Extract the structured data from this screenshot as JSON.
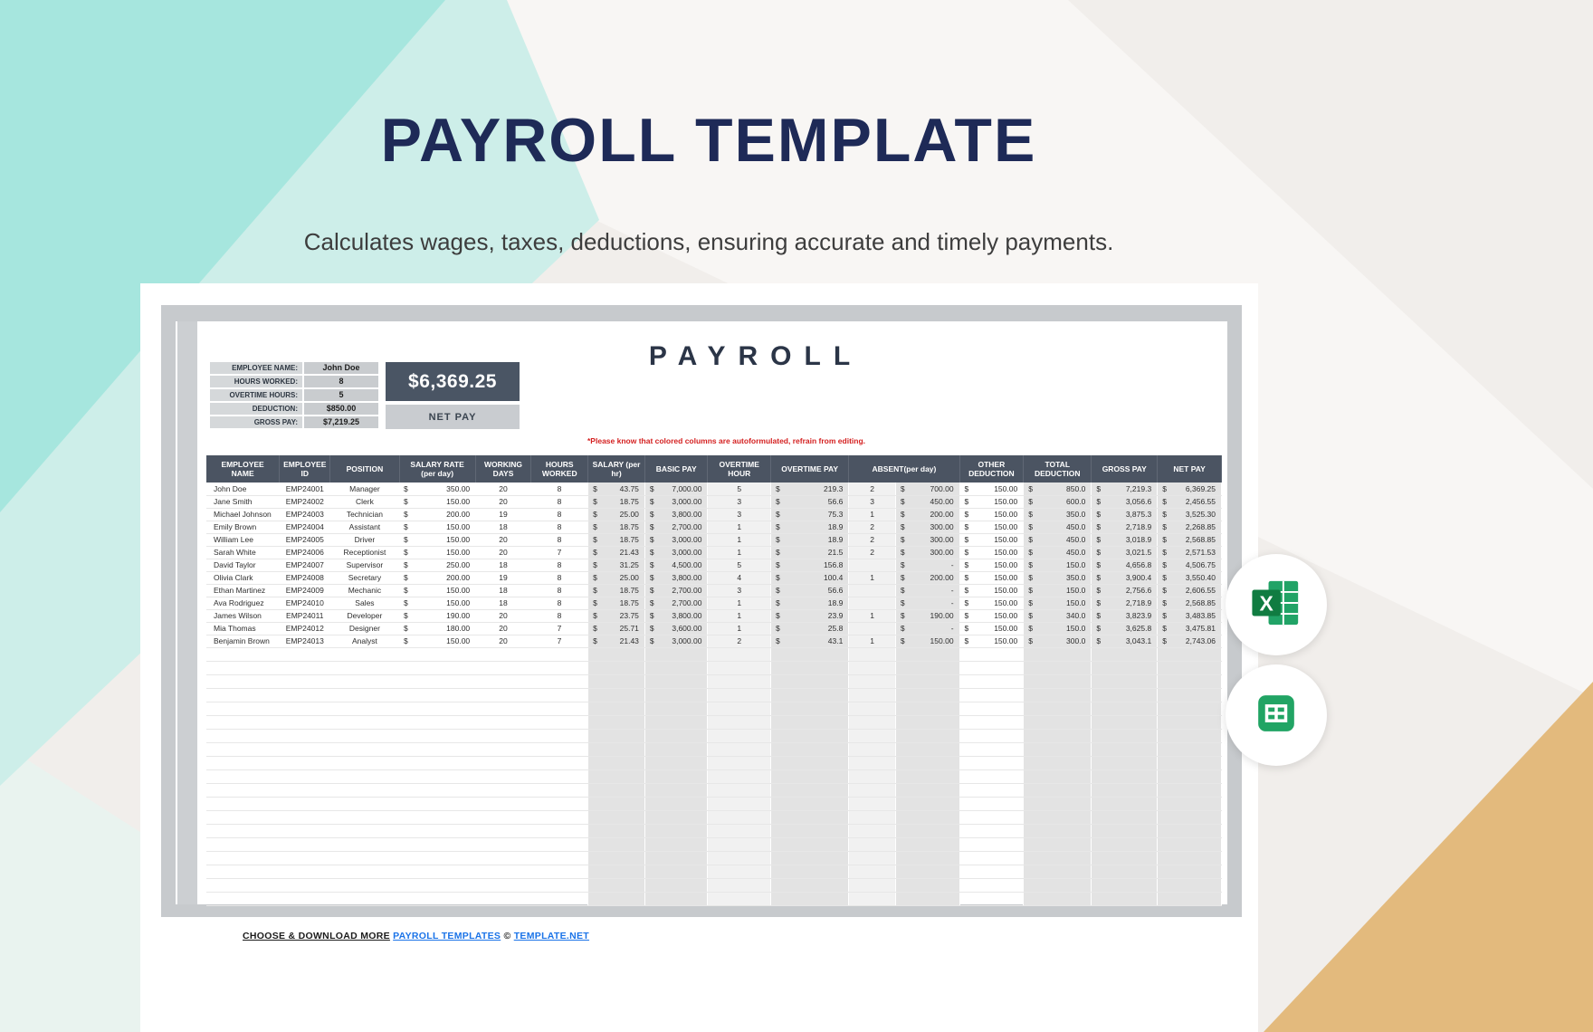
{
  "page": {
    "title": "PAYROLL TEMPLATE",
    "subtitle": "Calculates wages, taxes, deductions, ensuring accurate and timely payments.",
    "footer": {
      "prefix": "CHOOSE & DOWNLOAD MORE",
      "templates_link": "PAYROLL TEMPLATES",
      "copyright": "©",
      "site_link": "TEMPLATE.NET"
    },
    "icons": [
      "excel-icon",
      "google-sheets-icon"
    ]
  },
  "sheet": {
    "title": "PAYROLL",
    "note": "*Please know that colored columns are autoformulated, refrain from editing.",
    "summary": {
      "rows": [
        {
          "label": "EMPLOYEE NAME:",
          "value": "John Doe"
        },
        {
          "label": "HOURS WORKED:",
          "value": "8"
        },
        {
          "label": "OVERTIME HOURS:",
          "value": "5"
        },
        {
          "label": "DEDUCTION:",
          "value": "$850.00"
        },
        {
          "label": "GROSS PAY:",
          "value": "$7,219.25"
        }
      ],
      "net_pay_value": "$6,369.25",
      "net_pay_label": "NET PAY"
    },
    "table": {
      "headers": [
        "EMPLOYEE NAME",
        "EMPLOYEE ID",
        "POSITION",
        "SALARY RATE (per day)",
        "WORKING DAYS",
        "HOURS WORKED",
        "SALARY (per hr)",
        "BASIC PAY",
        "OVERTIME HOUR",
        "OVERTIME PAY",
        "ABSENT(per day)",
        "OTHER DEDUCTION",
        "TOTAL DEDUCTION",
        "GROSS PAY",
        "NET PAY"
      ],
      "rows": [
        {
          "name": "John Doe",
          "id": "EMP24001",
          "position": "Manager",
          "salary_rate": "350.00",
          "working_days": "20",
          "hours_worked": "8",
          "salary_per_hr": "43.75",
          "basic_pay": "7,000.00",
          "overtime_hour": "5",
          "overtime_pay": "219.3",
          "absent_days": "2",
          "absent_amount": "700.00",
          "other_deduction": "150.00",
          "total_deduction": "850.0",
          "gross_pay": "7,219.3",
          "net_pay": "6,369.25"
        },
        {
          "name": "Jane Smith",
          "id": "EMP24002",
          "position": "Clerk",
          "salary_rate": "150.00",
          "working_days": "20",
          "hours_worked": "8",
          "salary_per_hr": "18.75",
          "basic_pay": "3,000.00",
          "overtime_hour": "3",
          "overtime_pay": "56.6",
          "absent_days": "3",
          "absent_amount": "450.00",
          "other_deduction": "150.00",
          "total_deduction": "600.0",
          "gross_pay": "3,056.6",
          "net_pay": "2,456.55"
        },
        {
          "name": "Michael Johnson",
          "id": "EMP24003",
          "position": "Technician",
          "salary_rate": "200.00",
          "working_days": "19",
          "hours_worked": "8",
          "salary_per_hr": "25.00",
          "basic_pay": "3,800.00",
          "overtime_hour": "3",
          "overtime_pay": "75.3",
          "absent_days": "1",
          "absent_amount": "200.00",
          "other_deduction": "150.00",
          "total_deduction": "350.0",
          "gross_pay": "3,875.3",
          "net_pay": "3,525.30"
        },
        {
          "name": "Emily Brown",
          "id": "EMP24004",
          "position": "Assistant",
          "salary_rate": "150.00",
          "working_days": "18",
          "hours_worked": "8",
          "salary_per_hr": "18.75",
          "basic_pay": "2,700.00",
          "overtime_hour": "1",
          "overtime_pay": "18.9",
          "absent_days": "2",
          "absent_amount": "300.00",
          "other_deduction": "150.00",
          "total_deduction": "450.0",
          "gross_pay": "2,718.9",
          "net_pay": "2,268.85"
        },
        {
          "name": "William Lee",
          "id": "EMP24005",
          "position": "Driver",
          "salary_rate": "150.00",
          "working_days": "20",
          "hours_worked": "8",
          "salary_per_hr": "18.75",
          "basic_pay": "3,000.00",
          "overtime_hour": "1",
          "overtime_pay": "18.9",
          "absent_days": "2",
          "absent_amount": "300.00",
          "other_deduction": "150.00",
          "total_deduction": "450.0",
          "gross_pay": "3,018.9",
          "net_pay": "2,568.85"
        },
        {
          "name": "Sarah White",
          "id": "EMP24006",
          "position": "Receptionist",
          "salary_rate": "150.00",
          "working_days": "20",
          "hours_worked": "7",
          "salary_per_hr": "21.43",
          "basic_pay": "3,000.00",
          "overtime_hour": "1",
          "overtime_pay": "21.5",
          "absent_days": "2",
          "absent_amount": "300.00",
          "other_deduction": "150.00",
          "total_deduction": "450.0",
          "gross_pay": "3,021.5",
          "net_pay": "2,571.53"
        },
        {
          "name": "David Taylor",
          "id": "EMP24007",
          "position": "Supervisor",
          "salary_rate": "250.00",
          "working_days": "18",
          "hours_worked": "8",
          "salary_per_hr": "31.25",
          "basic_pay": "4,500.00",
          "overtime_hour": "5",
          "overtime_pay": "156.8",
          "absent_days": "",
          "absent_amount": "-",
          "other_deduction": "150.00",
          "total_deduction": "150.0",
          "gross_pay": "4,656.8",
          "net_pay": "4,506.75"
        },
        {
          "name": "Olivia Clark",
          "id": "EMP24008",
          "position": "Secretary",
          "salary_rate": "200.00",
          "working_days": "19",
          "hours_worked": "8",
          "salary_per_hr": "25.00",
          "basic_pay": "3,800.00",
          "overtime_hour": "4",
          "overtime_pay": "100.4",
          "absent_days": "1",
          "absent_amount": "200.00",
          "other_deduction": "150.00",
          "total_deduction": "350.0",
          "gross_pay": "3,900.4",
          "net_pay": "3,550.40"
        },
        {
          "name": "Ethan Martinez",
          "id": "EMP24009",
          "position": "Mechanic",
          "salary_rate": "150.00",
          "working_days": "18",
          "hours_worked": "8",
          "salary_per_hr": "18.75",
          "basic_pay": "2,700.00",
          "overtime_hour": "3",
          "overtime_pay": "56.6",
          "absent_days": "",
          "absent_amount": "-",
          "other_deduction": "150.00",
          "total_deduction": "150.0",
          "gross_pay": "2,756.6",
          "net_pay": "2,606.55"
        },
        {
          "name": "Ava Rodriguez",
          "id": "EMP24010",
          "position": "Sales",
          "salary_rate": "150.00",
          "working_days": "18",
          "hours_worked": "8",
          "salary_per_hr": "18.75",
          "basic_pay": "2,700.00",
          "overtime_hour": "1",
          "overtime_pay": "18.9",
          "absent_days": "",
          "absent_amount": "-",
          "other_deduction": "150.00",
          "total_deduction": "150.0",
          "gross_pay": "2,718.9",
          "net_pay": "2,568.85"
        },
        {
          "name": "James Wilson",
          "id": "EMP24011",
          "position": "Developer",
          "salary_rate": "190.00",
          "working_days": "20",
          "hours_worked": "8",
          "salary_per_hr": "23.75",
          "basic_pay": "3,800.00",
          "overtime_hour": "1",
          "overtime_pay": "23.9",
          "absent_days": "1",
          "absent_amount": "190.00",
          "other_deduction": "150.00",
          "total_deduction": "340.0",
          "gross_pay": "3,823.9",
          "net_pay": "3,483.85"
        },
        {
          "name": "Mia Thomas",
          "id": "EMP24012",
          "position": "Designer",
          "salary_rate": "180.00",
          "working_days": "20",
          "hours_worked": "7",
          "salary_per_hr": "25.71",
          "basic_pay": "3,600.00",
          "overtime_hour": "1",
          "overtime_pay": "25.8",
          "absent_days": "",
          "absent_amount": "-",
          "other_deduction": "150.00",
          "total_deduction": "150.0",
          "gross_pay": "3,625.8",
          "net_pay": "3,475.81"
        },
        {
          "name": "Benjamin Brown",
          "id": "EMP24013",
          "position": "Analyst",
          "salary_rate": "150.00",
          "working_days": "20",
          "hours_worked": "7",
          "salary_per_hr": "21.43",
          "basic_pay": "3,000.00",
          "overtime_hour": "2",
          "overtime_pay": "43.1",
          "absent_days": "1",
          "absent_amount": "150.00",
          "other_deduction": "150.00",
          "total_deduction": "300.0",
          "gross_pay": "3,043.1",
          "net_pay": "2,743.06"
        }
      ],
      "empty_row_count": 19
    }
  },
  "colors": {
    "title_navy": "#1e2a57",
    "teal_dark": "#a6e6de",
    "teal_light": "#cdeee9",
    "tan": "#e3ba7d",
    "header_slate": "#4b5462",
    "autoformula_gray": "#e3e3e3",
    "autoformula_light": "#f1f1f1",
    "note_red": "#d41f1f",
    "link_blue": "#1a73e8"
  }
}
